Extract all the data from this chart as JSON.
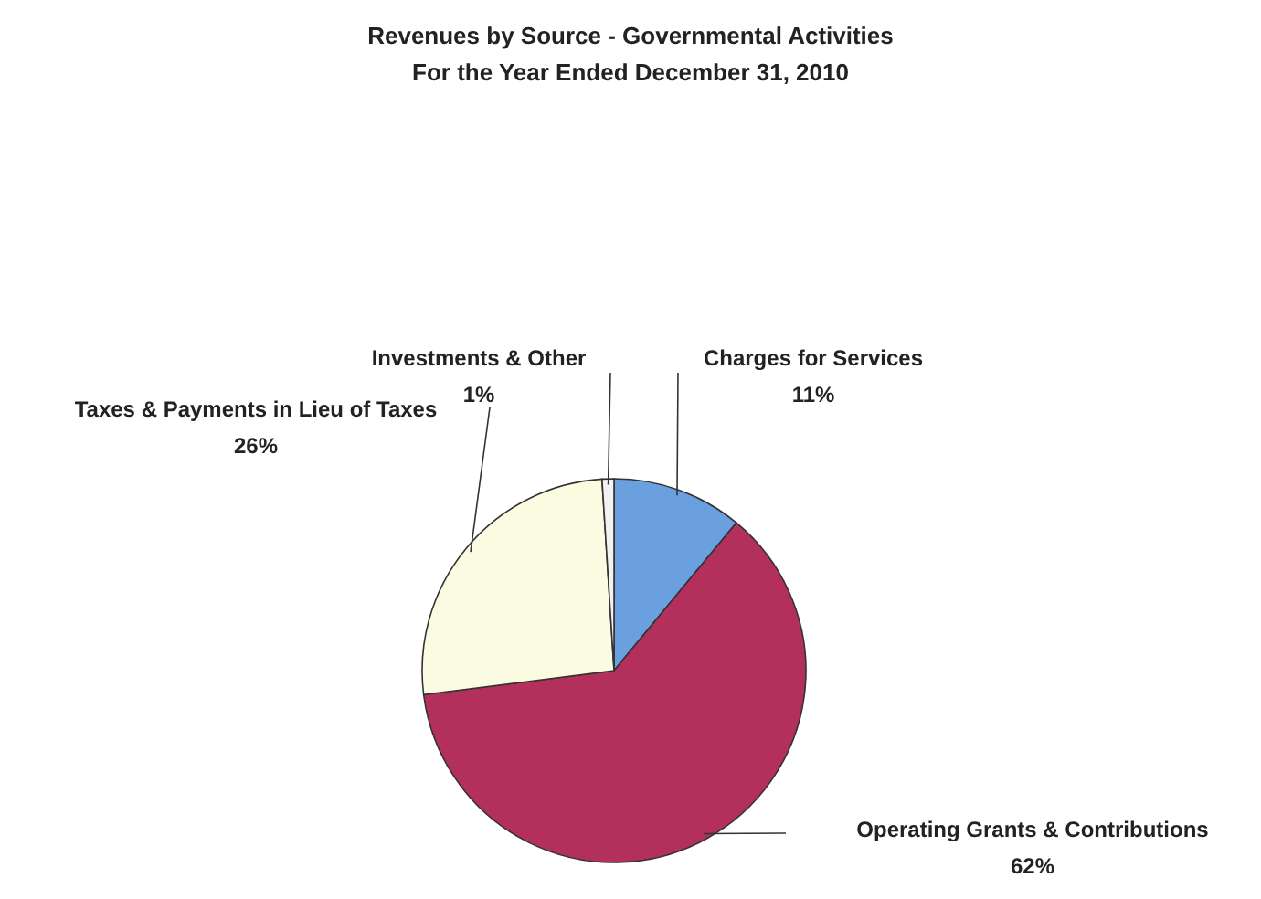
{
  "chart_data": {
    "type": "pie",
    "title": "Revenues by Source - Governmental Activities\nFor the Year Ended December 31, 2010",
    "categories": [
      "Charges for Services",
      "Operating Grants & Contributions",
      "Taxes & Payments in Lieu of Taxes",
      "Investments & Other"
    ],
    "values": [
      11,
      62,
      26,
      1
    ],
    "value_labels": [
      "11%",
      "62%",
      "26%",
      "1%"
    ],
    "colors": [
      "#6a9fe0",
      "#b3305c",
      "#fbfbe2",
      "#f2f2f2"
    ],
    "legend": false
  }
}
